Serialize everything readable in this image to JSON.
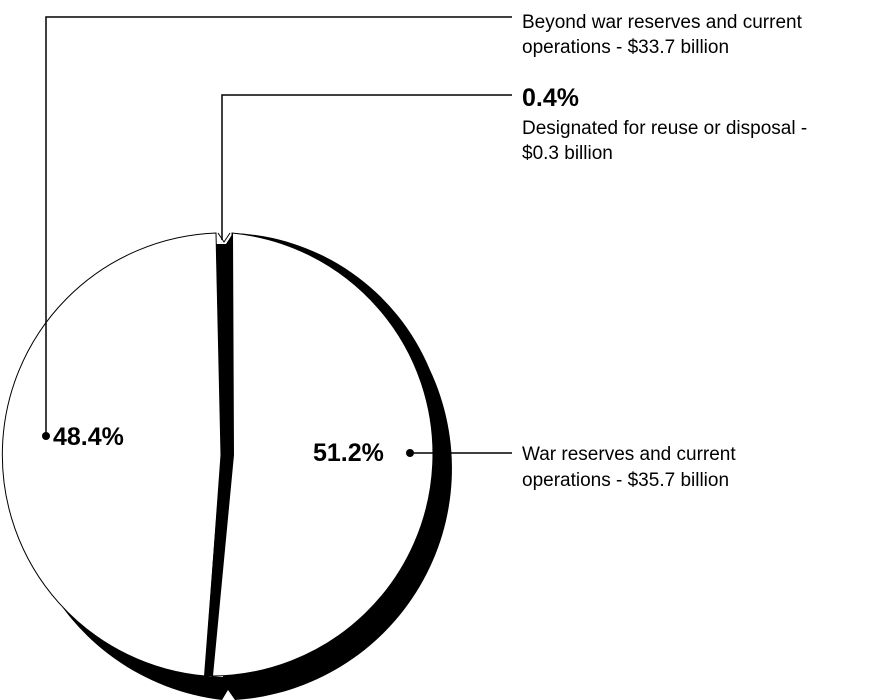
{
  "chart_data": {
    "type": "pie",
    "title": "",
    "slices": [
      {
        "name": "War reserves and current operations",
        "pct_label": "51.2%",
        "value": 51.2,
        "amount_billion": 35.7,
        "desc_lines": [
          "War reserves and current",
          "operations - $35.7 billion"
        ]
      },
      {
        "name": "Beyond war reserves and current operations",
        "pct_label": "48.4%",
        "value": 48.4,
        "amount_billion": 33.7,
        "desc_lines": [
          "Beyond war reserves and current",
          "operations - $33.7 billion"
        ]
      },
      {
        "name": "Designated for reuse or disposal",
        "pct_label": "0.4%",
        "value": 0.4,
        "amount_billion": 0.3,
        "desc_lines": [
          "Designated for reuse or disposal -",
          "$0.3 billion"
        ]
      }
    ],
    "colors": {
      "slice_fill": "#ffffff",
      "slice_stroke": "#000000",
      "shadow": "#000000"
    }
  }
}
